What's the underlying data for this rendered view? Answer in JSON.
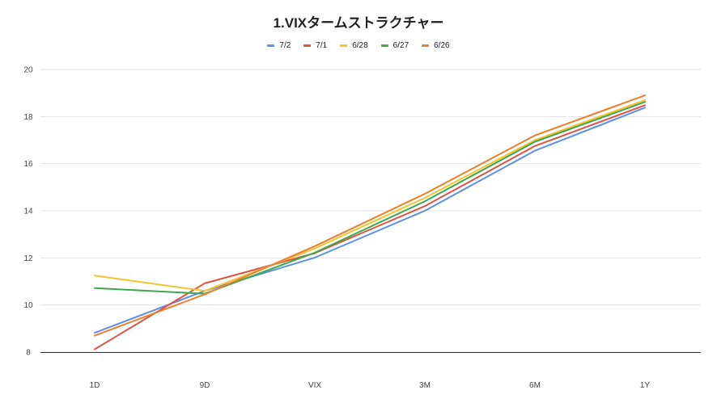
{
  "chart_data": {
    "type": "line",
    "title": "1.VIXタームストラクチャー",
    "xlabel": "",
    "ylabel": "",
    "categories": [
      "1D",
      "9D",
      "VIX",
      "3M",
      "6M",
      "1Y"
    ],
    "ylim": [
      8,
      20
    ],
    "yticks": [
      8,
      10,
      12,
      14,
      16,
      18,
      20
    ],
    "grid": true,
    "legend_position": "top",
    "series": [
      {
        "name": "7/2",
        "color": "#5b8fe8",
        "values": [
          8.82,
          10.6,
          12.01,
          14.0,
          16.55,
          18.38
        ]
      },
      {
        "name": "7/1",
        "color": "#e0523f",
        "values": [
          8.12,
          10.92,
          12.2,
          14.2,
          16.75,
          18.48
        ]
      },
      {
        "name": "6/28",
        "color": "#f5c330",
        "values": [
          11.25,
          10.6,
          12.4,
          14.55,
          17.0,
          18.7
        ]
      },
      {
        "name": "6/27",
        "color": "#3ea84c",
        "values": [
          10.72,
          10.48,
          12.22,
          14.4,
          16.93,
          18.62
        ]
      },
      {
        "name": "6/26",
        "color": "#f07d2a",
        "values": [
          8.7,
          10.45,
          12.5,
          14.72,
          17.2,
          18.9
        ]
      }
    ]
  }
}
